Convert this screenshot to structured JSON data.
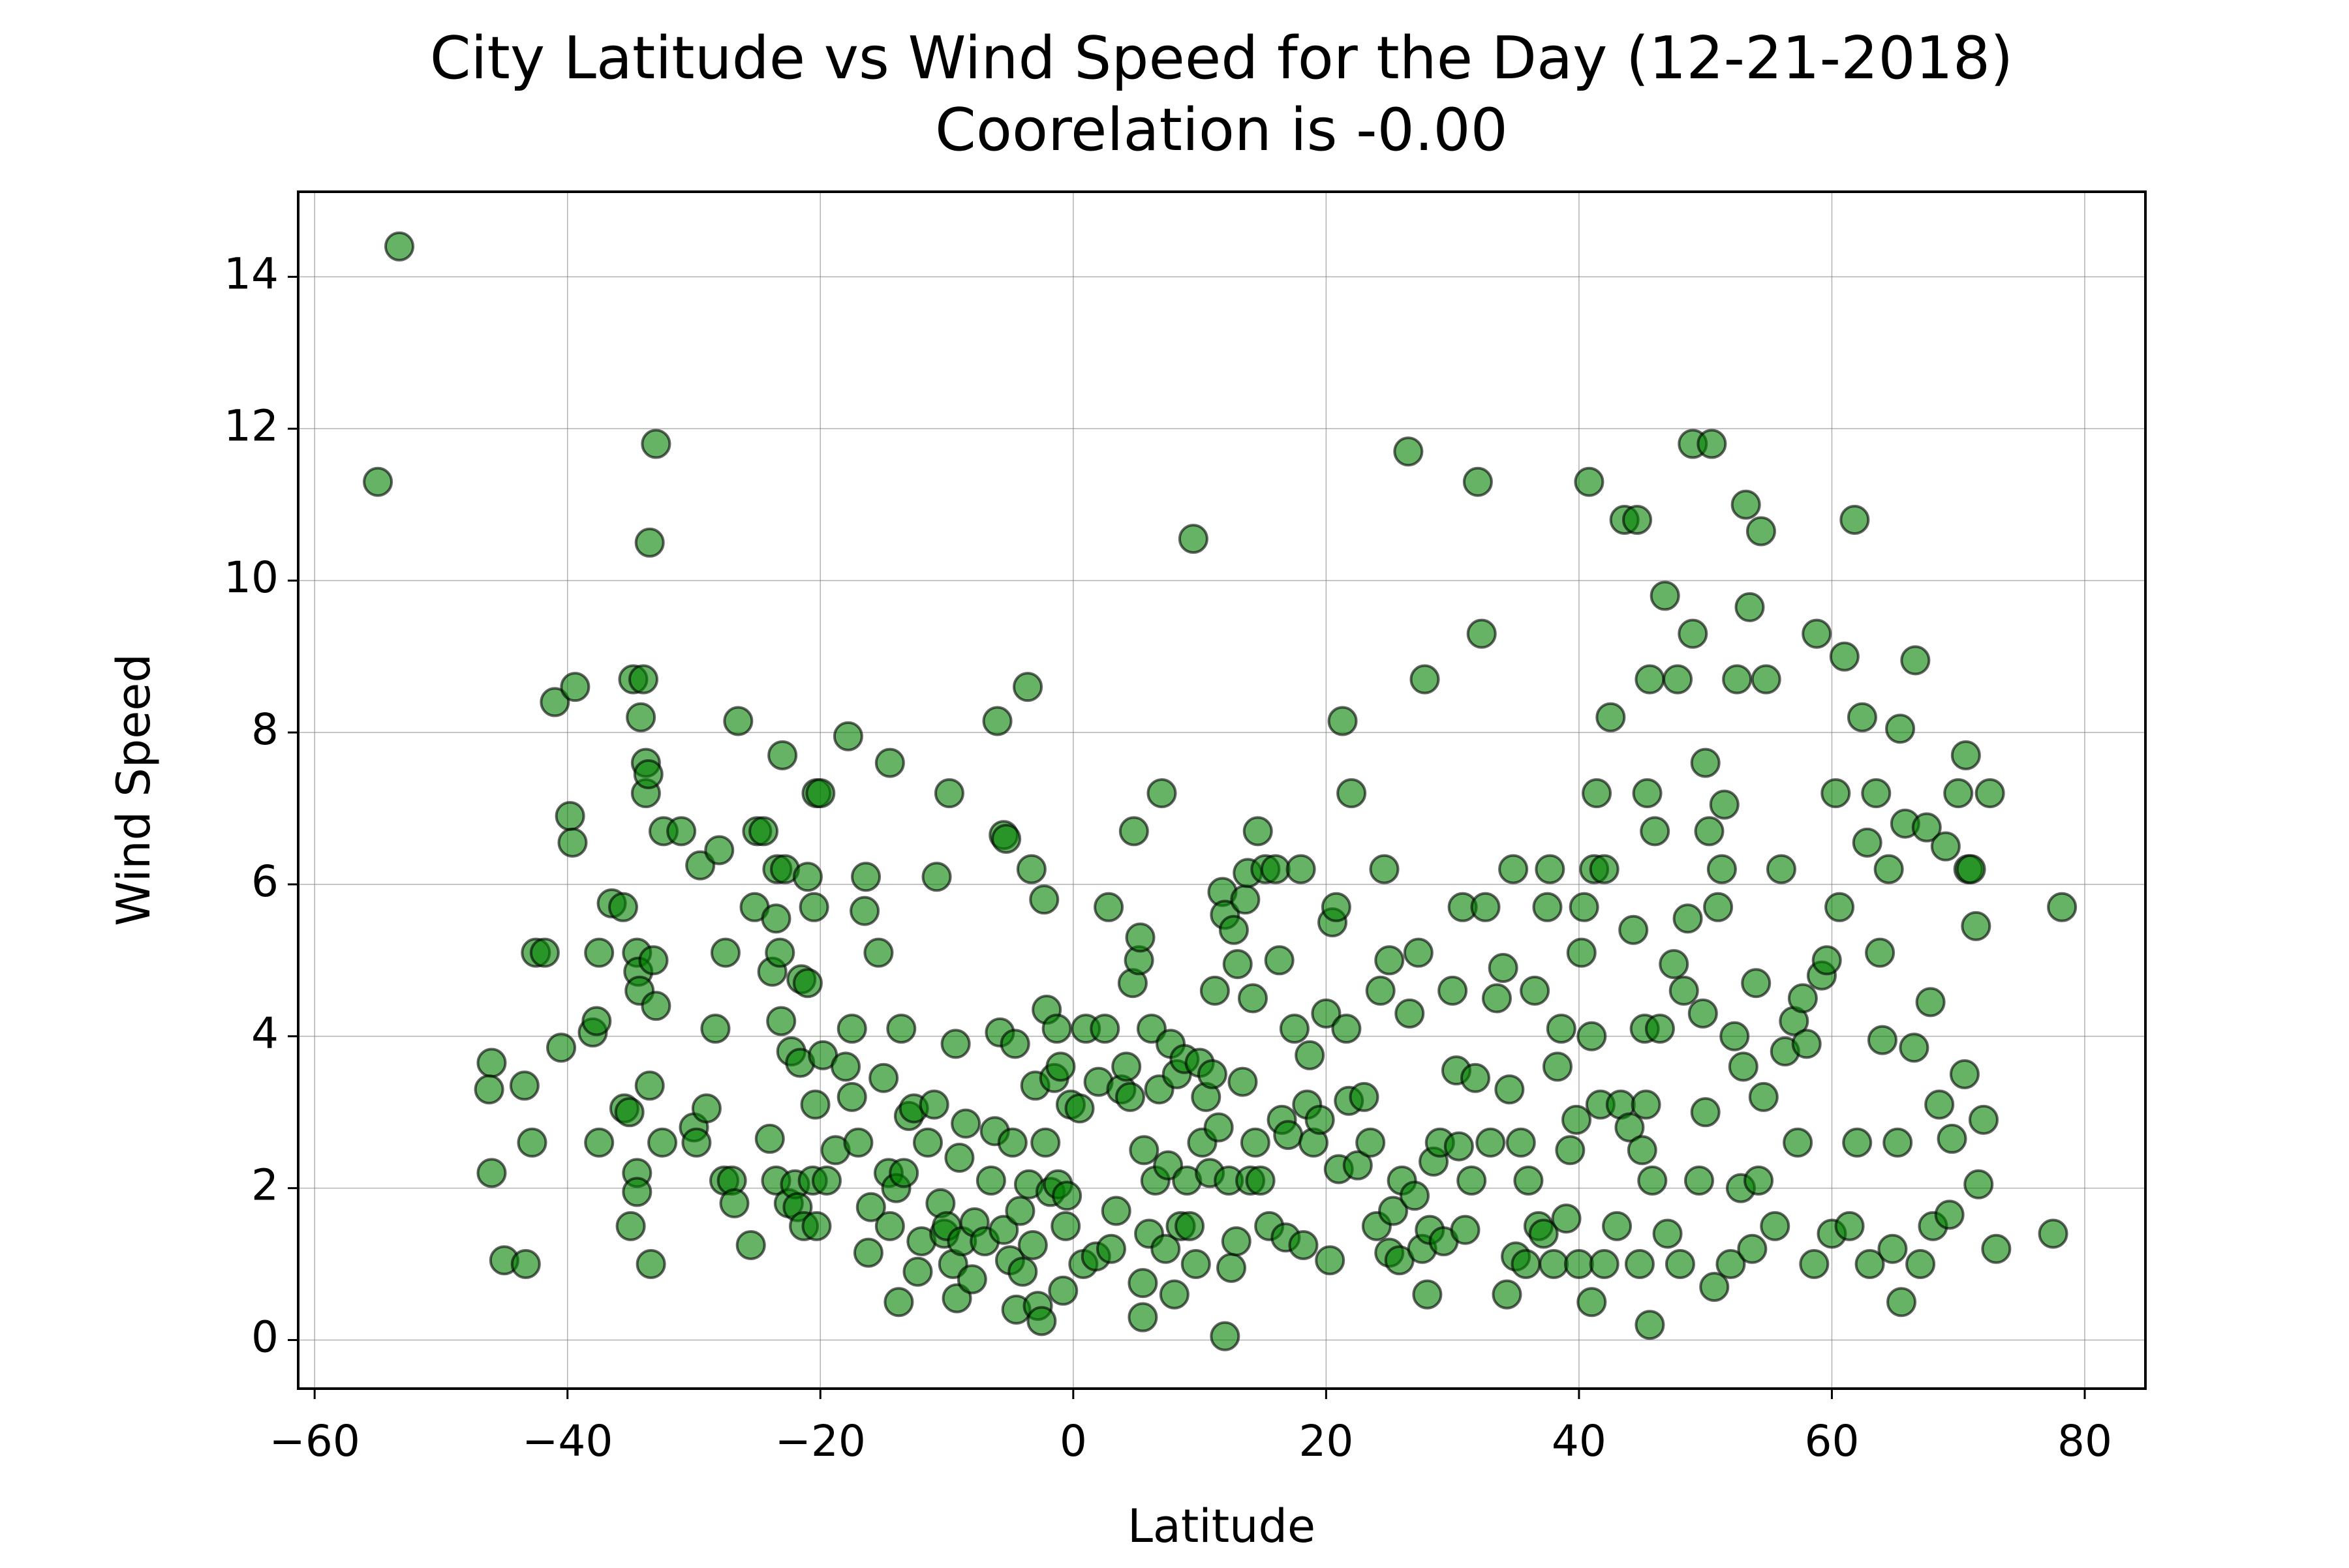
{
  "chart_data": {
    "type": "scatter",
    "title": "City Latitude vs Wind Speed for the Day (12-21-2018)",
    "subtitle": "Coorelation is -0.00",
    "x_label": "Latitude",
    "y_label": "Wind Speed",
    "color": "green",
    "edgecolor": "black",
    "grid": true,
    "xlim": [
      -61.3,
      84.8
    ],
    "ylim": [
      -0.64,
      15.12
    ],
    "xticks": [
      {
        "value": -60,
        "label": "−60"
      },
      {
        "value": -40,
        "label": "−40"
      },
      {
        "value": -20,
        "label": "−20"
      },
      0,
      20,
      40,
      60,
      80
    ],
    "yticks": [
      0,
      2,
      4,
      6,
      8,
      10,
      12,
      14
    ],
    "x": [
      -55,
      -53.3,
      -46,
      -46.2,
      -46,
      -45,
      -43.3,
      -43.4,
      -42.8,
      -42.5,
      -41.8,
      -41,
      -40.5,
      -39.8,
      -39.6,
      -39.4,
      -38,
      -37.7,
      -37.5,
      -37.5,
      -36.5,
      -35.6,
      -35.5,
      -35.1,
      -35,
      -34.8,
      -34.5,
      -34.5,
      -34.5,
      -34.4,
      -34.3,
      -34.2,
      -34,
      -33.8,
      -33.8,
      -33.6,
      -33.5,
      -33.4,
      -33.2,
      -33,
      -33,
      -33.5,
      -32.5,
      -32.4,
      -31,
      -30,
      -29.8,
      -29.5,
      -29,
      -28.3,
      -28,
      -27.6,
      -27.5,
      -27,
      -26.8,
      -26.5,
      -25.5,
      -25.2,
      -25,
      -24.5,
      -24,
      -23.8,
      -23.5,
      -23.5,
      -23.4,
      -23.2,
      -23.1,
      -23,
      -22.8,
      -22.5,
      -22.3,
      -22,
      -21.8,
      -21.6,
      -21.5,
      -21.3,
      -21,
      -21,
      -20.6,
      -20.4,
      -20.3,
      -20.5,
      -20.3,
      -20,
      -19.8,
      -19.5,
      -18.8,
      -18,
      -17.8,
      -17.5,
      -17.5,
      -17,
      -16.5,
      -16.4,
      -16.2,
      -16,
      -15.4,
      -15,
      -14.6,
      -14.5,
      -14.5,
      -14,
      -13.8,
      -13.6,
      -13.4,
      -13,
      -12.6,
      -12.3,
      -12,
      -11.5,
      -11,
      -10.8,
      -10.5,
      -10.2,
      -10,
      -9.8,
      -9.5,
      -9.3,
      -9,
      -9.2,
      -8.8,
      -8.5,
      -8,
      -7.8,
      -7,
      -6.5,
      -6.2,
      -6,
      -5.8,
      -5.5,
      -5.5,
      -5.3,
      -5,
      -4.8,
      -4.6,
      -4.5,
      -4.2,
      -4,
      -3.6,
      -3.5,
      -3.3,
      -3.2,
      -3,
      -2.8,
      -2.5,
      -2.3,
      -2.2,
      -2.1,
      -1.8,
      -1.5,
      -1.3,
      -1.2,
      -1,
      -0.8,
      -0.6,
      -0.5,
      -0.2,
      0.5,
      0.8,
      1,
      1.8,
      2,
      2.5,
      2.8,
      3,
      3.4,
      3.8,
      4.2,
      4.5,
      4.7,
      4.8,
      5.2,
      5.3,
      5.5,
      5.5,
      5.6,
      6,
      6.2,
      6.5,
      6.8,
      7,
      7.3,
      7.5,
      7.7,
      8,
      8.2,
      8.5,
      8.8,
      9,
      9.2,
      9.5,
      9.7,
      10,
      10.2,
      10.5,
      10.8,
      11,
      11.2,
      11.5,
      11.8,
      12,
      12,
      12.3,
      12.5,
      12.7,
      12.9,
      13,
      13.4,
      13.6,
      13.8,
      14,
      14.2,
      14.4,
      14.6,
      14.8,
      15.2,
      15.5,
      16,
      16.3,
      16.5,
      16.8,
      17,
      17.5,
      18,
      18.2,
      18.5,
      18.7,
      19,
      19.5,
      20,
      20.3,
      20.5,
      20.8,
      21,
      21.3,
      21.6,
      21.8,
      22,
      22.5,
      23,
      23.5,
      24,
      24.3,
      24.6,
      25,
      25,
      25.3,
      25.8,
      26,
      26.5,
      26.6,
      27,
      27.3,
      27.6,
      27.8,
      28,
      28.2,
      28.5,
      29,
      29.3,
      30,
      30.3,
      30.5,
      30.8,
      31,
      31.5,
      31.8,
      32,
      32.3,
      32.6,
      33,
      33.5,
      34,
      34.3,
      34.5,
      34.8,
      35,
      35.4,
      35.8,
      36,
      36.5,
      36.8,
      37.2,
      37.5,
      37.7,
      38,
      38.3,
      38.6,
      39,
      39.3,
      39.8,
      40,
      40.2,
      40.4,
      40.8,
      41,
      41,
      41.2,
      41.4,
      41.7,
      42,
      42,
      42.5,
      43,
      43.3,
      43.6,
      44,
      44.3,
      44.6,
      44.8,
      45,
      45.2,
      45.3,
      45.4,
      45.6,
      45.6,
      45.8,
      46,
      46.4,
      46.8,
      47,
      47.5,
      47.8,
      48,
      48.3,
      48.6,
      49,
      49,
      49.5,
      49.8,
      50,
      50,
      50.3,
      50.5,
      50.7,
      51,
      51.3,
      51.5,
      52,
      52.3,
      52.5,
      52.8,
      53,
      53.2,
      53.5,
      53.7,
      54,
      54.2,
      54.4,
      54.6,
      54.8,
      55.5,
      56,
      56.3,
      57,
      57.3,
      57.7,
      58,
      58.6,
      58.8,
      59.2,
      59.6,
      60,
      60.3,
      60.6,
      61,
      61.4,
      61.8,
      62,
      62.4,
      62.8,
      63,
      63.5,
      63.8,
      64,
      64.5,
      64.8,
      65.2,
      65.4,
      65.5,
      65.8,
      66.5,
      66.6,
      67,
      67.5,
      67.8,
      68,
      68.5,
      69,
      69.3,
      69.5,
      70,
      70.5,
      70.6,
      70.8,
      71,
      71.4,
      71.6,
      72,
      72.5,
      73,
      77.5,
      78.2
    ],
    "values": [
      11.3,
      14.4,
      3.65,
      3.3,
      2.2,
      1.05,
      1.0,
      3.35,
      2.6,
      5.1,
      5.1,
      8.4,
      3.85,
      6.9,
      6.55,
      8.6,
      4.05,
      4.2,
      2.6,
      5.1,
      5.75,
      5.7,
      3.05,
      3.0,
      1.5,
      8.7,
      2.2,
      1.95,
      5.1,
      4.85,
      4.6,
      8.2,
      8.7,
      7.6,
      7.2,
      7.45,
      3.35,
      1.0,
      5.0,
      4.4,
      11.8,
      10.5,
      2.6,
      6.7,
      6.7,
      2.8,
      2.6,
      6.25,
      3.05,
      4.1,
      6.45,
      2.1,
      5.1,
      2.1,
      1.8,
      8.15,
      1.25,
      5.7,
      6.7,
      6.7,
      2.65,
      4.85,
      2.1,
      5.55,
      6.2,
      5.1,
      4.2,
      7.7,
      6.2,
      1.8,
      3.8,
      2.05,
      1.75,
      3.65,
      4.75,
      1.5,
      6.1,
      4.7,
      2.1,
      3.1,
      1.5,
      5.7,
      7.2,
      7.2,
      3.75,
      2.1,
      2.5,
      3.6,
      7.95,
      4.1,
      3.2,
      2.6,
      5.65,
      6.1,
      1.15,
      1.75,
      5.1,
      3.45,
      2.2,
      7.6,
      1.5,
      2.0,
      0.5,
      4.1,
      2.2,
      2.95,
      3.05,
      0.9,
      1.3,
      2.6,
      3.1,
      6.1,
      1.8,
      1.4,
      1.5,
      7.2,
      1.0,
      3.9,
      2.4,
      0.55,
      1.3,
      2.85,
      0.8,
      1.55,
      1.3,
      2.1,
      2.75,
      8.15,
      4.05,
      6.65,
      1.45,
      6.6,
      1.05,
      2.6,
      3.9,
      0.4,
      1.7,
      0.9,
      8.6,
      2.05,
      6.2,
      1.25,
      3.35,
      0.45,
      0.25,
      5.8,
      2.6,
      4.35,
      1.95,
      3.45,
      4.1,
      2.05,
      3.6,
      0.65,
      1.5,
      1.9,
      3.1,
      3.05,
      1.0,
      4.1,
      1.1,
      3.4,
      4.1,
      5.7,
      1.2,
      1.7,
      3.3,
      3.6,
      3.2,
      4.7,
      6.7,
      5.0,
      5.3,
      0.3,
      0.75,
      2.5,
      1.4,
      4.1,
      2.1,
      3.3,
      7.2,
      1.2,
      2.3,
      3.9,
      0.6,
      3.5,
      1.5,
      3.7,
      2.1,
      1.5,
      10.55,
      1.0,
      3.65,
      2.6,
      3.2,
      2.2,
      3.5,
      4.6,
      2.8,
      5.9,
      5.6,
      0.05,
      2.1,
      0.95,
      5.4,
      1.3,
      4.95,
      3.4,
      5.8,
      6.15,
      2.1,
      4.5,
      2.6,
      6.7,
      2.1,
      6.2,
      1.5,
      6.2,
      5.0,
      2.9,
      1.35,
      2.7,
      4.1,
      6.2,
      1.25,
      3.1,
      3.75,
      2.6,
      2.9,
      4.3,
      1.05,
      5.5,
      5.7,
      2.25,
      8.15,
      4.1,
      3.15,
      7.2,
      2.3,
      3.2,
      2.6,
      1.5,
      4.6,
      6.2,
      1.15,
      5.0,
      1.7,
      1.05,
      2.1,
      11.7,
      4.3,
      1.9,
      5.1,
      1.2,
      8.7,
      0.6,
      1.45,
      2.35,
      2.6,
      1.3,
      4.6,
      3.55,
      2.55,
      5.7,
      1.45,
      2.1,
      3.45,
      11.3,
      9.3,
      5.7,
      2.6,
      4.5,
      4.9,
      0.6,
      3.3,
      6.2,
      1.1,
      2.6,
      1.0,
      2.1,
      4.6,
      1.5,
      1.4,
      5.7,
      6.2,
      1.0,
      3.6,
      4.1,
      1.6,
      2.5,
      2.9,
      1.0,
      5.1,
      5.7,
      11.3,
      0.5,
      4.0,
      6.2,
      7.2,
      3.1,
      1.0,
      6.2,
      8.2,
      1.5,
      3.1,
      10.8,
      2.8,
      5.4,
      10.8,
      1.0,
      2.5,
      4.1,
      3.1,
      7.2,
      8.7,
      0.2,
      2.1,
      6.7,
      4.1,
      9.8,
      1.4,
      4.95,
      8.7,
      1.0,
      4.6,
      5.55,
      11.8,
      9.3,
      2.1,
      4.3,
      7.6,
      3.0,
      6.7,
      11.8,
      0.7,
      5.7,
      6.2,
      7.05,
      1.0,
      4.0,
      8.7,
      2.0,
      3.6,
      11.0,
      9.65,
      1.2,
      4.7,
      2.1,
      10.65,
      3.2,
      8.7,
      1.5,
      6.2,
      3.8,
      4.2,
      2.6,
      4.5,
      3.9,
      1.0,
      9.3,
      4.8,
      5.0,
      1.4,
      7.2,
      5.7,
      9.0,
      1.5,
      10.8,
      2.6,
      8.2,
      6.55,
      1.0,
      7.2,
      5.1,
      3.95,
      6.2,
      1.2,
      2.6,
      8.05,
      0.5,
      6.8,
      3.85,
      8.95,
      1.0,
      6.75,
      4.45,
      1.5,
      3.1,
      6.5,
      1.65,
      2.65,
      7.2,
      3.5,
      7.7,
      6.2,
      6.2,
      5.45,
      2.05,
      2.9,
      7.2,
      1.2,
      1.4,
      5.7
    ]
  }
}
